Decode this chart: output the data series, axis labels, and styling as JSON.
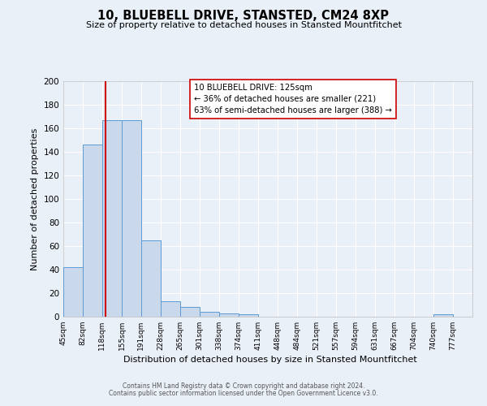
{
  "title": "10, BLUEBELL DRIVE, STANSTED, CM24 8XP",
  "subtitle": "Size of property relative to detached houses in Stansted Mountfitchet",
  "xlabel": "Distribution of detached houses by size in Stansted Mountfitchet",
  "ylabel": "Number of detached properties",
  "bin_edges": [
    45,
    82,
    118,
    155,
    191,
    228,
    265,
    301,
    338,
    374,
    411,
    448,
    484,
    521,
    557,
    594,
    631,
    667,
    704,
    740,
    777
  ],
  "bar_heights": [
    42,
    146,
    167,
    167,
    65,
    13,
    8,
    4,
    3,
    2,
    0,
    0,
    0,
    0,
    0,
    0,
    0,
    0,
    0,
    2
  ],
  "bar_color": "#c9d9eb",
  "bar_edgecolor": "#5b9bd5",
  "property_size": 125,
  "red_line_color": "#cc0000",
  "annotation_line1": "10 BLUEBELL DRIVE: 125sqm",
  "annotation_line2": "← 36% of detached houses are smaller (221)",
  "annotation_line3": "63% of semi-detached houses are larger (388) →",
  "annotation_box_edgecolor": "#cc0000",
  "annotation_box_facecolor": "#ffffff",
  "ylim": [
    0,
    200
  ],
  "yticks": [
    0,
    20,
    40,
    60,
    80,
    100,
    120,
    140,
    160,
    180,
    200
  ],
  "background_color": "#eaf0f8",
  "grid_color": "#dce8f5",
  "footer_line1": "Contains HM Land Registry data © Crown copyright and database right 2024.",
  "footer_line2": "Contains public sector information licensed under the Open Government Licence v3.0."
}
